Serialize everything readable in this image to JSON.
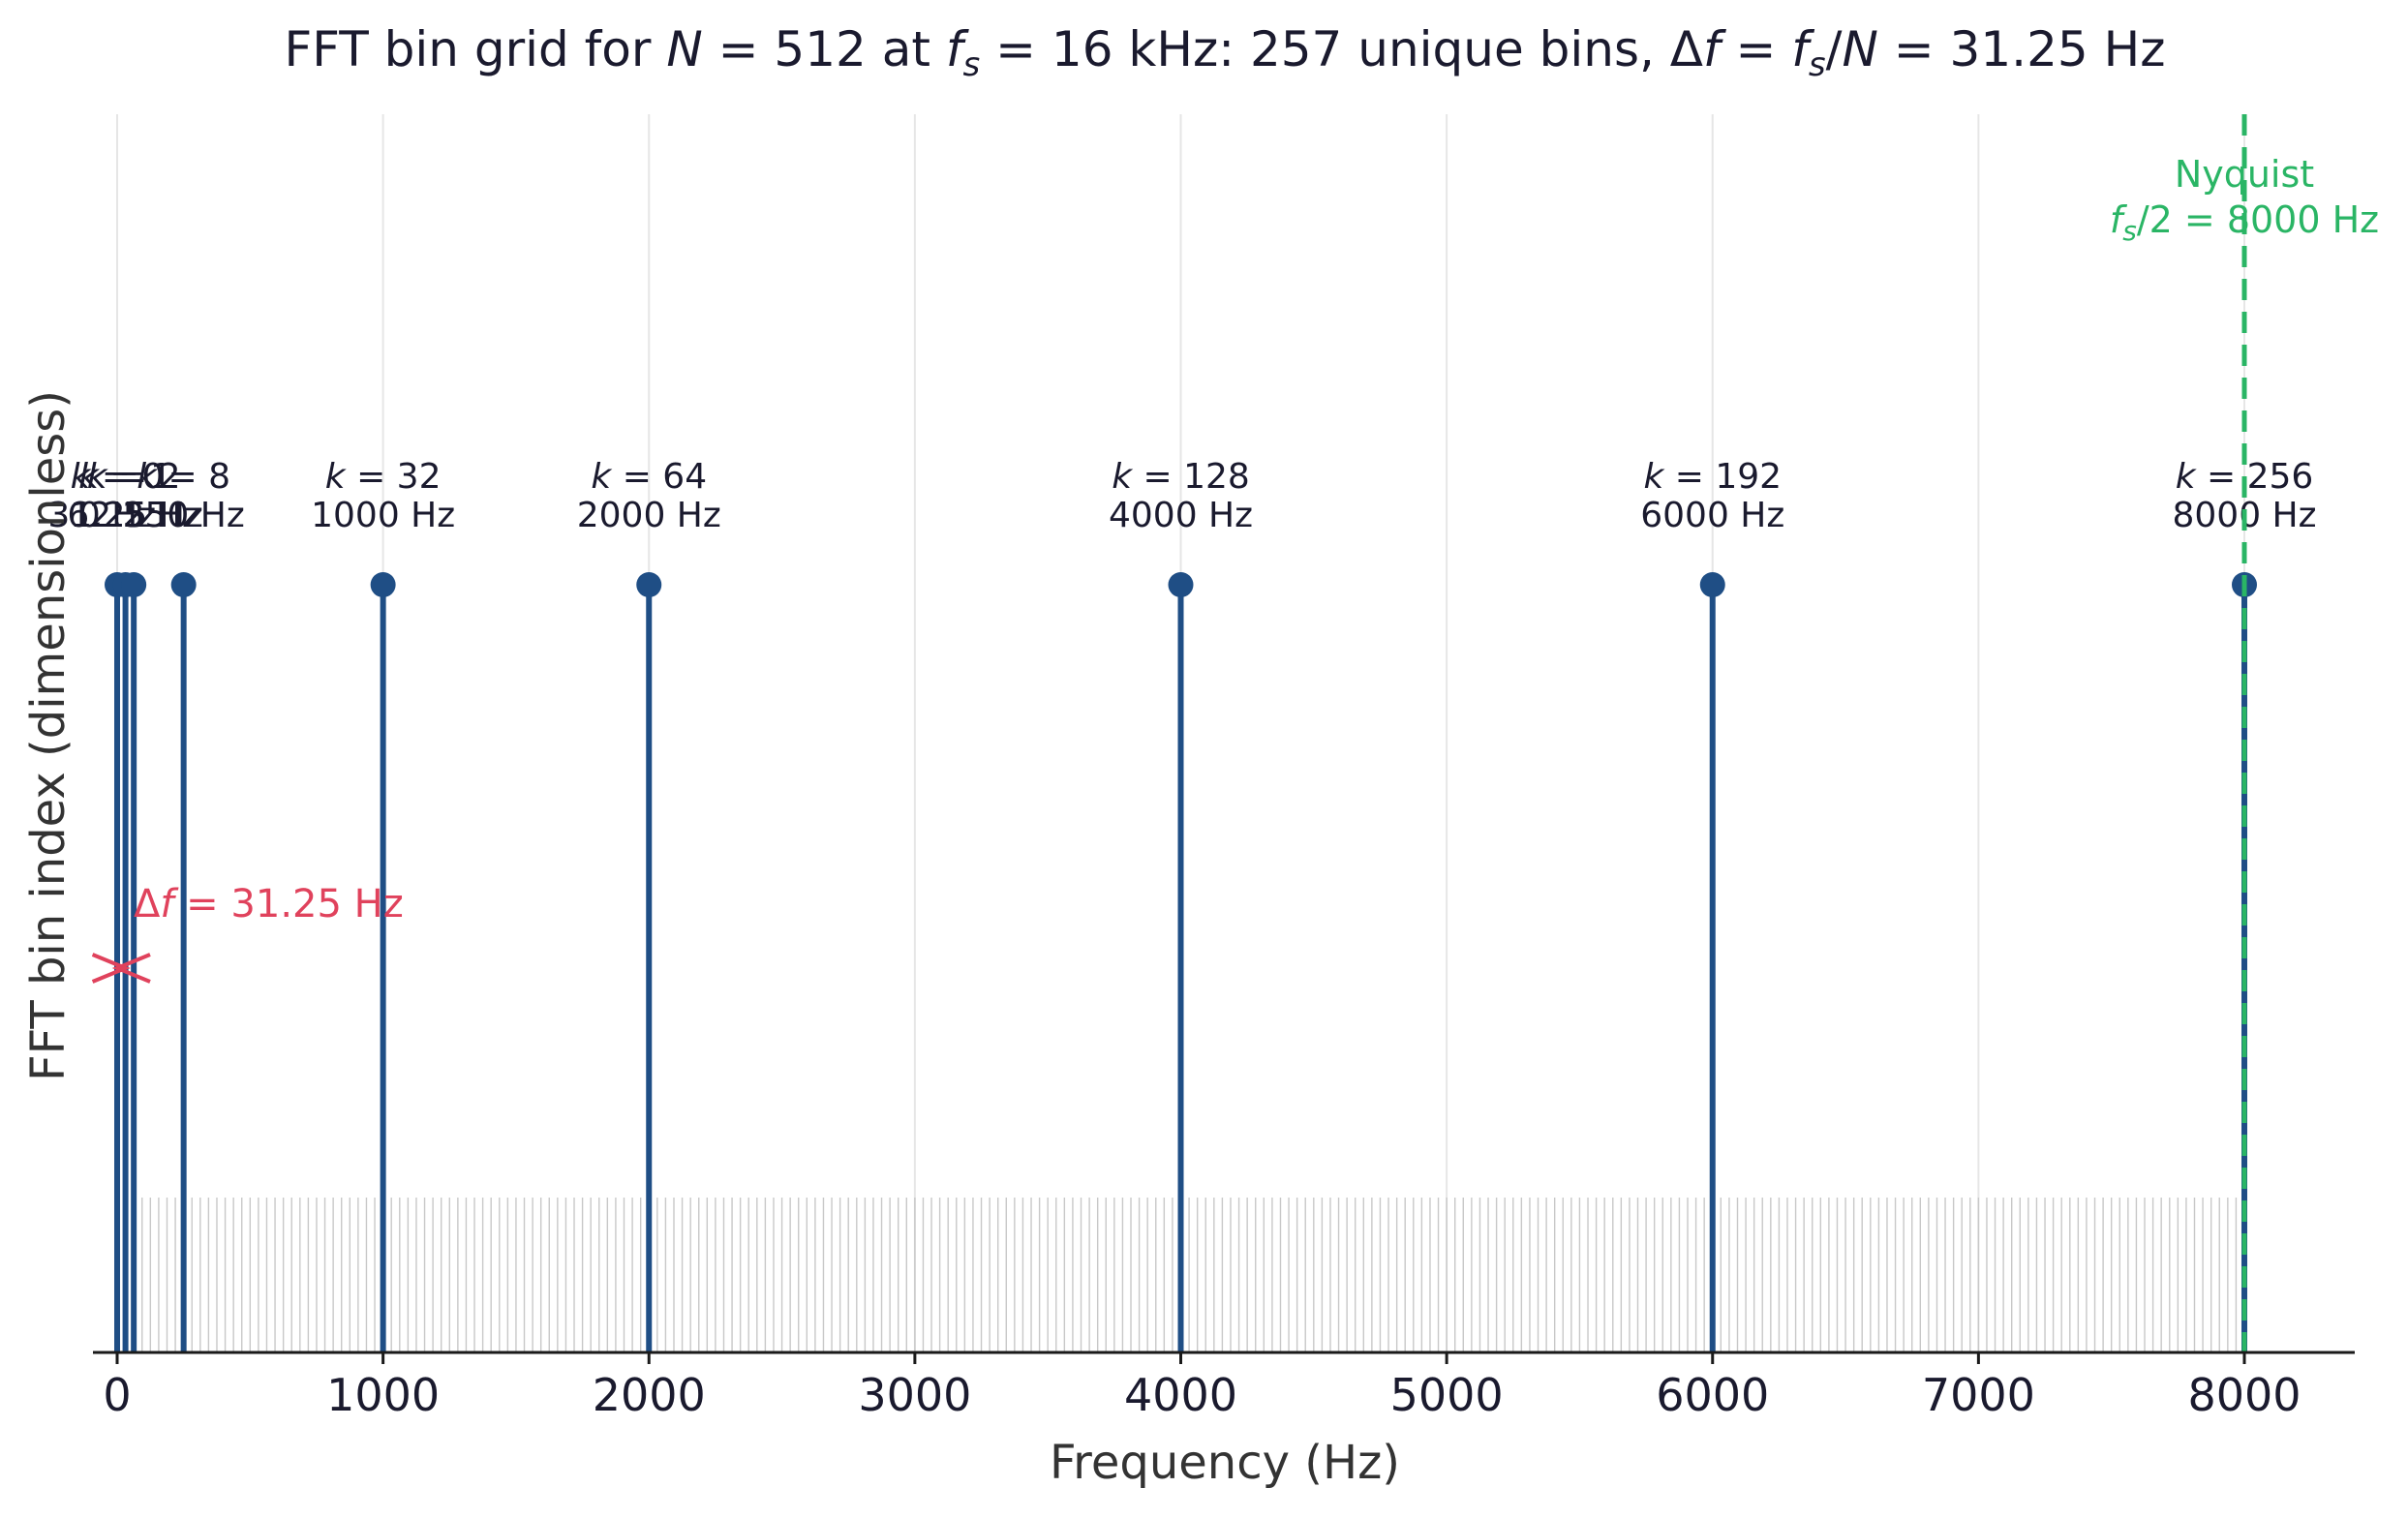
{
  "chart_data": {
    "type": "stem",
    "title": "FFT bin grid for N = 512 at fs = 16 kHz: 257 unique bins, Δf = fs/N = 31.25 Hz",
    "xlabel": "Frequency (Hz)",
    "ylabel": "FFT bin index (dimensionless)",
    "xlim": [
      -100,
      8400
    ],
    "xticks": [
      0,
      1000,
      2000,
      3000,
      4000,
      5000,
      6000,
      7000,
      8000
    ],
    "xtick_labels": [
      "0",
      "1000",
      "2000",
      "3000",
      "4000",
      "5000",
      "6000",
      "7000",
      "8000"
    ],
    "grid": "vertical",
    "sample_rate_hz": 16000,
    "fft_size": 512,
    "unique_bins": 257,
    "bin_spacing_hz": 31.25,
    "stem_color": "#1f4e85",
    "all_bins_color": "#c8c8c8",
    "nyquist_color": "#2ab565",
    "delta_color": "#e0425c",
    "highlighted_bins": [
      {
        "k": 0,
        "freq_hz": 0,
        "label_k": "k = 0",
        "label_f": "0 Hz"
      },
      {
        "k": 1,
        "freq_hz": 31.25,
        "label_k": "k = 1",
        "label_f": "31.25 Hz"
      },
      {
        "k": 2,
        "freq_hz": 62.5,
        "label_k": "k = 2",
        "label_f": "62.5 Hz"
      },
      {
        "k": 8,
        "freq_hz": 250,
        "label_k": "k = 8",
        "label_f": "250 Hz"
      },
      {
        "k": 32,
        "freq_hz": 1000,
        "label_k": "k = 32",
        "label_f": "1000 Hz"
      },
      {
        "k": 64,
        "freq_hz": 2000,
        "label_k": "k = 64",
        "label_f": "2000 Hz"
      },
      {
        "k": 128,
        "freq_hz": 4000,
        "label_k": "k = 128",
        "label_f": "4000 Hz"
      },
      {
        "k": 192,
        "freq_hz": 6000,
        "label_k": "k = 192",
        "label_f": "6000 Hz"
      },
      {
        "k": 256,
        "freq_hz": 8000,
        "label_k": "k = 256",
        "label_f": "8000 Hz"
      }
    ],
    "nyquist": {
      "freq_hz": 8000,
      "label_line1": "Nyquist",
      "label_line2": "fs/2 = 8000 Hz"
    },
    "delta_annotation": {
      "from_hz": 0,
      "to_hz": 31.25,
      "label": "Δf = 31.25 Hz"
    }
  }
}
